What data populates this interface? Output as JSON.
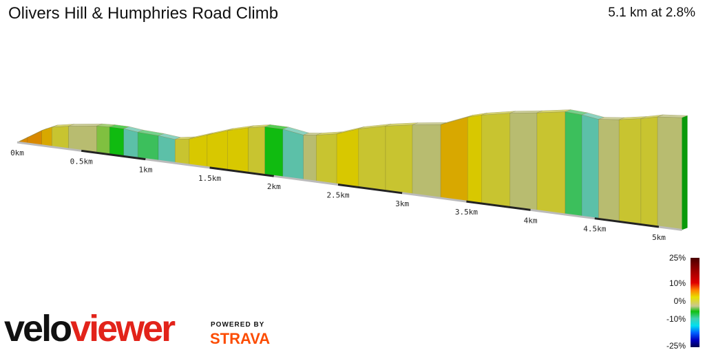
{
  "title": "Olivers Hill & Humphries Road Climb",
  "summary": "5.1 km at 2.8%",
  "chart_data": {
    "type": "area",
    "xlabel": "km",
    "x_ticks": [
      "0km",
      "0.5km",
      "1km",
      "1.5km",
      "2km",
      "2.5km",
      "3km",
      "3.5km",
      "4km",
      "4.5km",
      "5km"
    ],
    "distance_km": [
      0,
      0.08,
      0.19,
      0.27,
      0.4,
      0.62,
      0.72,
      0.83,
      0.94,
      1.1,
      1.23,
      1.34,
      1.48,
      1.64,
      1.8,
      1.93,
      2.07,
      2.23,
      2.33,
      2.49,
      2.66,
      2.87,
      3.08,
      3.3,
      3.51,
      3.62,
      3.84,
      4.05,
      4.27,
      4.4,
      4.53,
      4.69,
      4.86,
      4.99,
      5.18
    ],
    "elevation_m": [
      0,
      8,
      19,
      25,
      29,
      34,
      35,
      35,
      33,
      32,
      30,
      33,
      41,
      50,
      57,
      61,
      61,
      57,
      59,
      64,
      74,
      82,
      88,
      93,
      107,
      112,
      119,
      124,
      130,
      129,
      126,
      129,
      134,
      139,
      142
    ],
    "gradient_legend": [
      "25%",
      "10%",
      "0%",
      "-10%",
      "-25%"
    ]
  },
  "logo": {
    "velo": "velo",
    "viewer": "viewer",
    "powered_by": "POWERED BY",
    "strava": "STRAVA"
  }
}
